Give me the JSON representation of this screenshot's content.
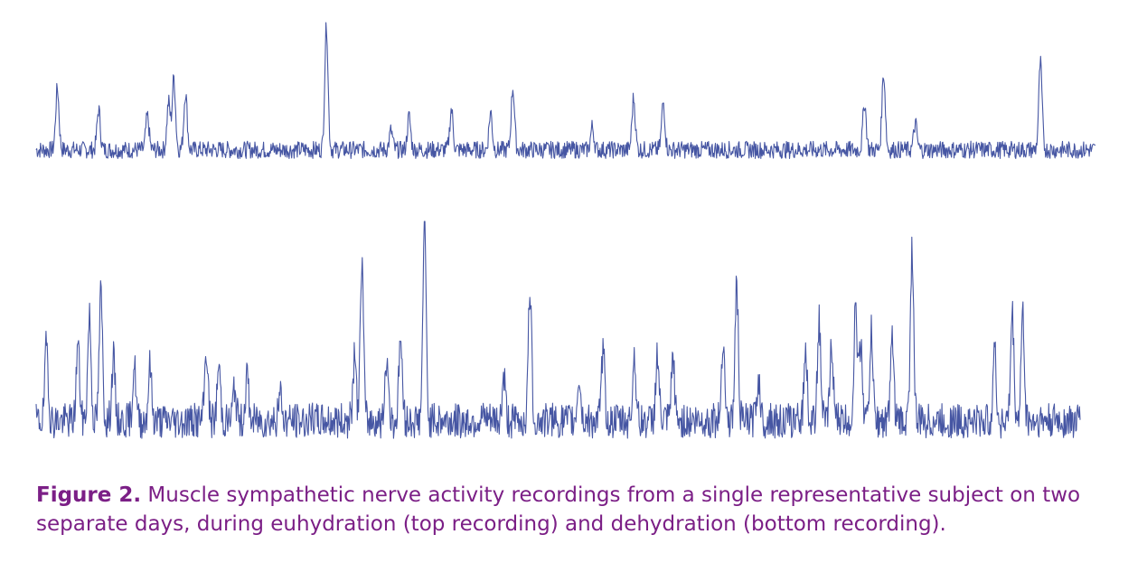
{
  "caption": {
    "label": "Figure 2.",
    "text": " Muscle sympathetic nerve activity recordings from a single representative subject on two separate days, during euhydration (top recording) and dehydration (bottom recording)."
  },
  "colors": {
    "trace": "#4656a3",
    "caption": "#7b1f86"
  },
  "chart_data": [
    {
      "type": "line",
      "description_note": "",
      "x_range": [
        0,
        1
      ],
      "y_range": [
        0,
        1
      ],
      "baseline": 0.12,
      "noise": 0.06,
      "bursts": [
        {
          "x": 0.02,
          "height": 0.55
        },
        {
          "x": 0.059,
          "height": 0.4
        },
        {
          "x": 0.105,
          "height": 0.35
        },
        {
          "x": 0.125,
          "height": 0.45
        },
        {
          "x": 0.13,
          "height": 0.62
        },
        {
          "x": 0.141,
          "height": 0.52
        },
        {
          "x": 0.274,
          "height": 0.98
        },
        {
          "x": 0.335,
          "height": 0.25
        },
        {
          "x": 0.352,
          "height": 0.35
        },
        {
          "x": 0.392,
          "height": 0.4
        },
        {
          "x": 0.429,
          "height": 0.38
        },
        {
          "x": 0.45,
          "height": 0.55
        },
        {
          "x": 0.525,
          "height": 0.28
        },
        {
          "x": 0.564,
          "height": 0.48
        },
        {
          "x": 0.592,
          "height": 0.45
        },
        {
          "x": 0.782,
          "height": 0.45
        },
        {
          "x": 0.8,
          "height": 0.65
        },
        {
          "x": 0.83,
          "height": 0.3
        },
        {
          "x": 0.948,
          "height": 0.72
        }
      ]
    },
    {
      "type": "line",
      "x_range": [
        0,
        1
      ],
      "y_range": [
        0,
        1
      ],
      "baseline": 0.1,
      "noise": 0.08,
      "bursts": [
        {
          "x": 0.01,
          "height": 0.45
        },
        {
          "x": 0.04,
          "height": 0.45
        },
        {
          "x": 0.051,
          "height": 0.58
        },
        {
          "x": 0.062,
          "height": 0.68
        },
        {
          "x": 0.074,
          "height": 0.38
        },
        {
          "x": 0.094,
          "height": 0.35
        },
        {
          "x": 0.109,
          "height": 0.35
        },
        {
          "x": 0.163,
          "height": 0.42
        },
        {
          "x": 0.175,
          "height": 0.35
        },
        {
          "x": 0.19,
          "height": 0.25
        },
        {
          "x": 0.202,
          "height": 0.3
        },
        {
          "x": 0.234,
          "height": 0.22
        },
        {
          "x": 0.305,
          "height": 0.38
        },
        {
          "x": 0.312,
          "height": 0.83
        },
        {
          "x": 0.336,
          "height": 0.38
        },
        {
          "x": 0.349,
          "height": 0.48
        },
        {
          "x": 0.372,
          "height": 1.0
        },
        {
          "x": 0.448,
          "height": 0.3
        },
        {
          "x": 0.473,
          "height": 0.7
        },
        {
          "x": 0.52,
          "height": 0.3
        },
        {
          "x": 0.543,
          "height": 0.42
        },
        {
          "x": 0.573,
          "height": 0.4
        },
        {
          "x": 0.595,
          "height": 0.4
        },
        {
          "x": 0.61,
          "height": 0.38
        },
        {
          "x": 0.658,
          "height": 0.48
        },
        {
          "x": 0.671,
          "height": 0.72
        },
        {
          "x": 0.692,
          "height": 0.3
        },
        {
          "x": 0.737,
          "height": 0.42
        },
        {
          "x": 0.75,
          "height": 0.55
        },
        {
          "x": 0.762,
          "height": 0.45
        },
        {
          "x": 0.785,
          "height": 0.62
        },
        {
          "x": 0.79,
          "height": 0.45
        },
        {
          "x": 0.8,
          "height": 0.5
        },
        {
          "x": 0.82,
          "height": 0.45
        },
        {
          "x": 0.839,
          "height": 0.88
        },
        {
          "x": 0.918,
          "height": 0.42
        },
        {
          "x": 0.935,
          "height": 0.58
        },
        {
          "x": 0.945,
          "height": 0.58
        }
      ]
    }
  ]
}
